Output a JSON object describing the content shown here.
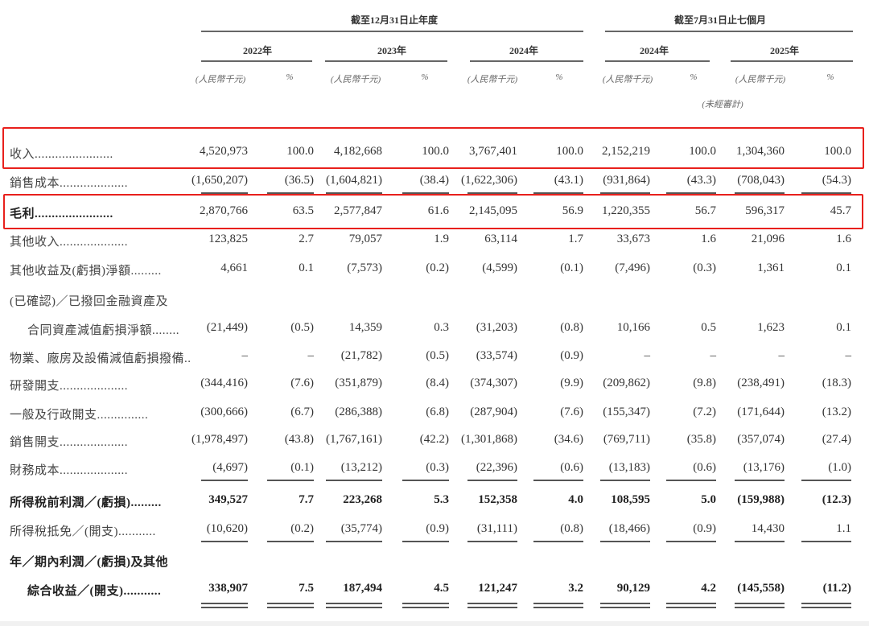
{
  "header": {
    "group_annual": "截至12月31日止年度",
    "group_seven_months": "截至7月31日止七個月",
    "years": [
      "2022年",
      "2023年",
      "2024年",
      "2024年",
      "2025年"
    ],
    "unit_label": "(人民幣千元)",
    "pct_label": "%",
    "unaudited": "(未經審計)"
  },
  "highlight_color": "#e8201c",
  "rows": [
    {
      "label": "收入.......................",
      "values": [
        "4,520,973",
        "100.0",
        "4,182,668",
        "100.0",
        "3,767,401",
        "100.0",
        "2,152,219",
        "100.0",
        "1,304,360",
        "100.0"
      ],
      "highlight": true
    },
    {
      "label": "銷售成本....................",
      "values": [
        "(1,650,207)",
        "(36.5)",
        "(1,604,821)",
        "(38.4)",
        "(1,622,306)",
        "(43.1)",
        "(931,864)",
        "(43.3)",
        "(708,043)",
        "(54.3)"
      ],
      "underline": "single"
    },
    {
      "label": "毛利.......................",
      "values": [
        "2,870,766",
        "63.5",
        "2,577,847",
        "61.6",
        "2,145,095",
        "56.9",
        "1,220,355",
        "56.7",
        "596,317",
        "45.7"
      ],
      "highlight": true,
      "bold_label": true
    },
    {
      "label": "其他收入....................",
      "values": [
        "123,825",
        "2.7",
        "79,057",
        "1.9",
        "63,114",
        "1.7",
        "33,673",
        "1.6",
        "21,096",
        "1.6"
      ]
    },
    {
      "label": "其他收益及(虧損)淨額.........",
      "values": [
        "4,661",
        "0.1",
        "(7,573)",
        "(0.2)",
        "(4,599)",
        "(0.1)",
        "(7,496)",
        "(0.3)",
        "1,361",
        "0.1"
      ]
    },
    {
      "label": "(已確認)／已撥回金融資產及",
      "values": []
    },
    {
      "label": "合同資產減值虧損淨額........",
      "indent": true,
      "values": [
        "(21,449)",
        "(0.5)",
        "14,359",
        "0.3",
        "(31,203)",
        "(0.8)",
        "10,166",
        "0.5",
        "1,623",
        "0.1"
      ]
    },
    {
      "label": "物業、廠房及設備減值虧損撥備..",
      "values": [
        "–",
        "–",
        "(21,782)",
        "(0.5)",
        "(33,574)",
        "(0.9)",
        "–",
        "–",
        "–",
        "–"
      ]
    },
    {
      "label": "研發開支....................",
      "values": [
        "(344,416)",
        "(7.6)",
        "(351,879)",
        "(8.4)",
        "(374,307)",
        "(9.9)",
        "(209,862)",
        "(9.8)",
        "(238,491)",
        "(18.3)"
      ]
    },
    {
      "label": "一般及行政開支...............",
      "values": [
        "(300,666)",
        "(6.7)",
        "(286,388)",
        "(6.8)",
        "(287,904)",
        "(7.6)",
        "(155,347)",
        "(7.2)",
        "(171,644)",
        "(13.2)"
      ]
    },
    {
      "label": "銷售開支....................",
      "values": [
        "(1,978,497)",
        "(43.8)",
        "(1,767,161)",
        "(42.2)",
        "(1,301,868)",
        "(34.6)",
        "(769,711)",
        "(35.8)",
        "(357,074)",
        "(27.4)"
      ]
    },
    {
      "label": "財務成本....................",
      "values": [
        "(4,697)",
        "(0.1)",
        "(13,212)",
        "(0.3)",
        "(22,396)",
        "(0.6)",
        "(13,183)",
        "(0.6)",
        "(13,176)",
        "(1.0)"
      ],
      "underline": "single"
    },
    {
      "label": "所得稅前利潤／(虧損).........",
      "values": [
        "349,527",
        "7.7",
        "223,268",
        "5.3",
        "152,358",
        "4.0",
        "108,595",
        "5.0",
        "(159,988)",
        "(12.3)"
      ],
      "bold": true
    },
    {
      "label": "所得稅抵免／(開支)...........",
      "values": [
        "(10,620)",
        "(0.2)",
        "(35,774)",
        "(0.9)",
        "(31,111)",
        "(0.8)",
        "(18,466)",
        "(0.9)",
        "14,430",
        "1.1"
      ],
      "underline": "single"
    },
    {
      "label": "年／期內利潤／(虧損)及其他",
      "values": [],
      "bold_label": true
    },
    {
      "label": "綜合收益／(開支)...........",
      "indent": true,
      "values": [
        "338,907",
        "7.5",
        "187,494",
        "4.5",
        "121,247",
        "3.2",
        "90,129",
        "4.2",
        "(145,558)",
        "(11.2)"
      ],
      "bold": true,
      "bold_label": true,
      "underline": "double"
    }
  ]
}
